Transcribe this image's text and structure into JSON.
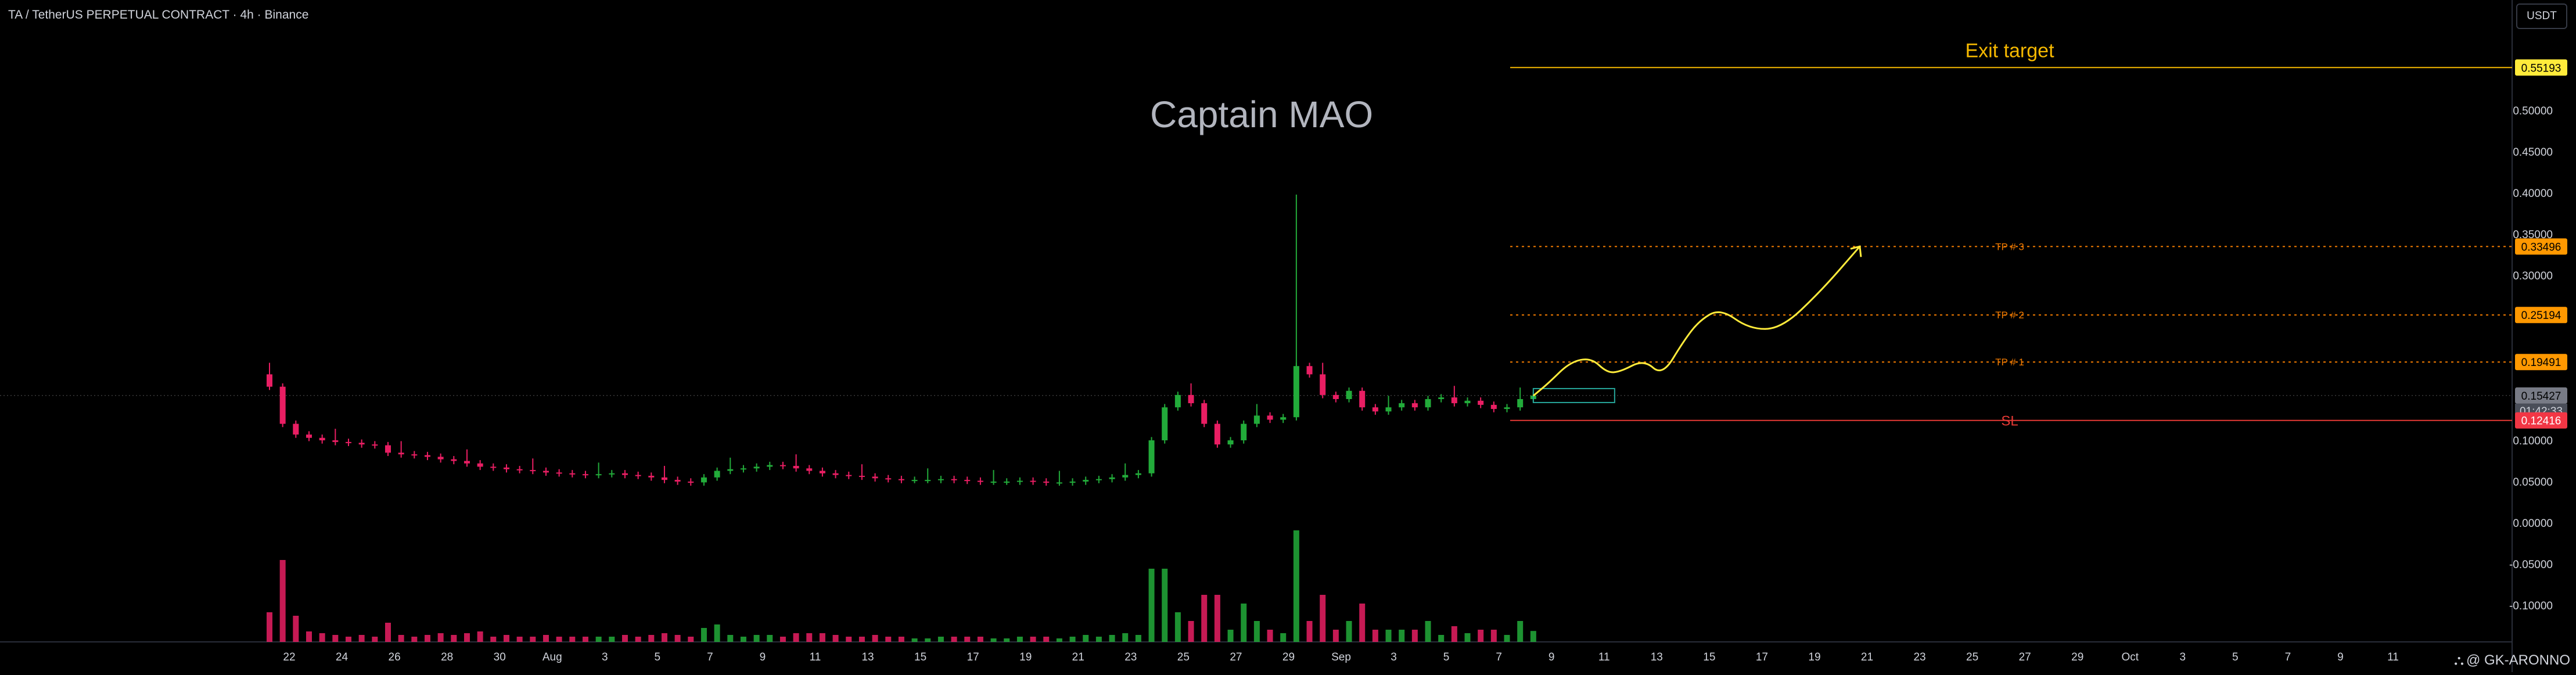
{
  "header": {
    "symbol_title": "TA / TetherUS PERPETUAL CONTRACT · 4h · Binance",
    "currency_button": "USDT"
  },
  "watermark": "Captain MAO",
  "author": {
    "icon": "tradingview-logo-icon",
    "name": "@ GK-ARONNO"
  },
  "colors": {
    "background": "#000000",
    "up": "#26a69a",
    "up_volume": "#22ab3a",
    "down": "#e91e63",
    "target_line": "#f5b800",
    "tp_line": "#f57c00",
    "sl_line": "#e53935",
    "arrow": "#ffeb3b"
  },
  "chart_data": {
    "type": "candlestick",
    "title": "TA / TetherUS PERPETUAL CONTRACT · 4h · Binance",
    "y_axis": {
      "ticks": [
        "0.50000",
        "0.45000",
        "0.40000",
        "0.35000",
        "0.30000",
        "0.10000",
        "0.05000",
        "0.00000",
        "-0.05000",
        "-0.10000"
      ],
      "tick_values": [
        0.5,
        0.45,
        0.4,
        0.35,
        0.3,
        0.1,
        0.05,
        0.0,
        -0.05,
        -0.1
      ],
      "ylim": [
        -0.145,
        0.61
      ]
    },
    "x_axis": {
      "ticks": [
        "22",
        "24",
        "26",
        "28",
        "30",
        "Aug",
        "3",
        "5",
        "7",
        "9",
        "11",
        "13",
        "15",
        "17",
        "19",
        "21",
        "23",
        "25",
        "27",
        "29",
        "Sep",
        "3",
        "5",
        "7",
        "9",
        "11",
        "13",
        "15",
        "17",
        "19",
        "21",
        "23",
        "25",
        "27",
        "29",
        "Oct",
        "3",
        "5",
        "7",
        "9",
        "11"
      ]
    },
    "price_labels": [
      {
        "value": "0.55193",
        "kind": "target"
      },
      {
        "value": "0.33496",
        "kind": "tp"
      },
      {
        "value": "0.25194",
        "kind": "tp"
      },
      {
        "value": "0.19491",
        "kind": "tp"
      },
      {
        "value": "0.15427",
        "kind": "last",
        "countdown": "01:42:33"
      },
      {
        "value": "0.12416",
        "kind": "sl"
      }
    ],
    "levels": [
      {
        "label": "Exit target",
        "price": 0.55193,
        "style": "solid",
        "kind": "target"
      },
      {
        "label": "TP # 3",
        "price": 0.33496,
        "style": "dotted",
        "kind": "tp"
      },
      {
        "label": "TP # 2",
        "price": 0.25194,
        "style": "dotted",
        "kind": "tp"
      },
      {
        "label": "TP # 1",
        "price": 0.19491,
        "style": "dotted",
        "kind": "tp"
      },
      {
        "label": "SL",
        "price": 0.12416,
        "style": "solid",
        "kind": "sl"
      }
    ],
    "last_price": 0.15427,
    "price_series": {
      "x": [
        0,
        0.5,
        1,
        1.5,
        2,
        2.5,
        3,
        3.5,
        4,
        4.5,
        5,
        5.5,
        6,
        6.5,
        7,
        7.5,
        8,
        8.5,
        9,
        9.5,
        10,
        10.5,
        11,
        11.5,
        12,
        12.5,
        13,
        13.5,
        14,
        14.5,
        15,
        15.5,
        16,
        16.5,
        17,
        17.5,
        18,
        18.5,
        19,
        19.5,
        20,
        20.5,
        21,
        21.5,
        22,
        22.5,
        23,
        23.5,
        24,
        24.5,
        25,
        25.5,
        26,
        26.5,
        27,
        27.5,
        28,
        28.5,
        29,
        29.5,
        30,
        30.5,
        31,
        31.5,
        32,
        32.5,
        33,
        33.5,
        34,
        34.5,
        35,
        35.5,
        36,
        36.5,
        37,
        37.5,
        38,
        38.5,
        39,
        39.5,
        40,
        40.5,
        41,
        41.5,
        42,
        42.5,
        43,
        43.5,
        44,
        44.5,
        45,
        45.5,
        46,
        46.5,
        47,
        47.5,
        48
      ],
      "close": [
        0.165,
        0.12,
        0.107,
        0.103,
        0.1,
        0.098,
        0.097,
        0.095,
        0.094,
        0.085,
        0.083,
        0.082,
        0.08,
        0.077,
        0.075,
        0.072,
        0.068,
        0.067,
        0.065,
        0.064,
        0.063,
        0.061,
        0.06,
        0.059,
        0.058,
        0.059,
        0.06,
        0.058,
        0.057,
        0.055,
        0.052,
        0.05,
        0.049,
        0.055,
        0.063,
        0.065,
        0.066,
        0.068,
        0.07,
        0.069,
        0.066,
        0.063,
        0.06,
        0.058,
        0.057,
        0.056,
        0.054,
        0.053,
        0.052,
        0.052,
        0.052,
        0.053,
        0.052,
        0.051,
        0.05,
        0.05,
        0.05,
        0.051,
        0.05,
        0.049,
        0.049,
        0.05,
        0.052,
        0.053,
        0.055,
        0.058,
        0.06,
        0.1,
        0.14,
        0.155,
        0.145,
        0.12,
        0.095,
        0.1,
        0.12,
        0.13,
        0.125,
        0.128,
        0.19,
        0.18,
        0.155,
        0.15,
        0.16,
        0.14,
        0.135,
        0.14,
        0.145,
        0.14,
        0.15,
        0.152,
        0.145,
        0.148,
        0.143,
        0.138,
        0.14,
        0.15,
        0.15427
      ]
    },
    "projection": {
      "x": [
        48,
        48.6,
        49.4,
        50.2,
        50.8,
        51.3,
        52.2,
        52.9,
        53.7,
        54.3,
        55.1,
        56.2,
        57.4,
        58.9,
        60.4
      ],
      "y": [
        0.154,
        0.17,
        0.195,
        0.2,
        0.182,
        0.183,
        0.198,
        0.178,
        0.22,
        0.245,
        0.26,
        0.235,
        0.235,
        0.28,
        0.335
      ]
    }
  }
}
